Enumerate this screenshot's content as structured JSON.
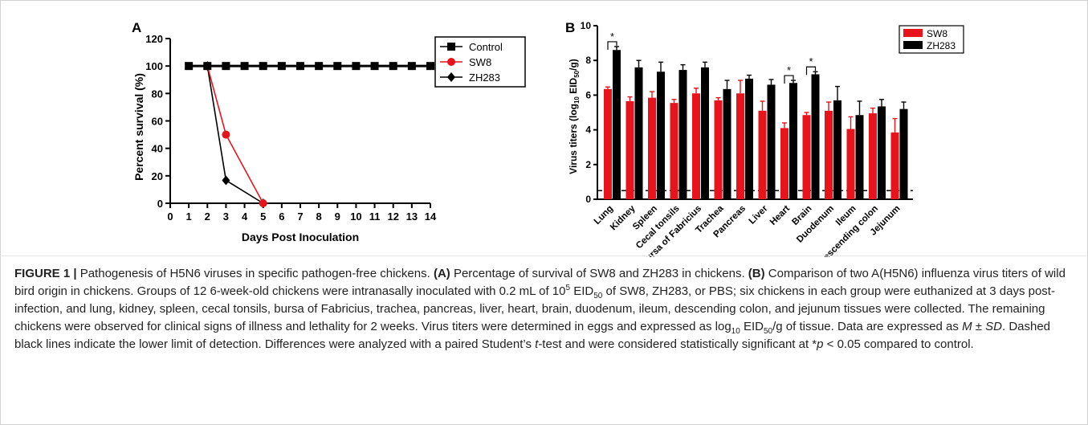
{
  "figure": {
    "panel_a": {
      "label": "A",
      "ylabel": "Percent survival (%)",
      "xlabel": "Days Post Inoculation",
      "legend": [
        "Control",
        "SW8",
        "ZH283"
      ]
    },
    "panel_b": {
      "label": "B",
      "ylabel_main": "Virus titers (log",
      "ylabel_sub": "10",
      "ylabel_mid": " EID",
      "ylabel_sub2": "50",
      "ylabel_end": "/g)",
      "legend": [
        "SW8",
        "ZH283"
      ],
      "sig_marker": "*"
    }
  },
  "chart_data": [
    {
      "type": "line",
      "title": "",
      "xlabel": "Days Post Inoculation",
      "ylabel": "Percent survival (%)",
      "xlim": [
        0,
        14
      ],
      "ylim": [
        0,
        120
      ],
      "xticks": [
        0,
        1,
        2,
        3,
        4,
        5,
        6,
        7,
        8,
        9,
        10,
        11,
        12,
        13,
        14
      ],
      "yticks": [
        0,
        20,
        40,
        60,
        80,
        100,
        120
      ],
      "legend_position": "top-right",
      "series": [
        {
          "name": "Control",
          "color": "#000000",
          "marker": "square",
          "x": [
            1,
            2,
            3,
            4,
            5,
            6,
            7,
            8,
            9,
            10,
            11,
            12,
            13,
            14
          ],
          "y": [
            100,
            100,
            100,
            100,
            100,
            100,
            100,
            100,
            100,
            100,
            100,
            100,
            100,
            100
          ]
        },
        {
          "name": "SW8",
          "color": "#e8141b",
          "marker": "circle",
          "x": [
            2,
            3,
            5
          ],
          "y": [
            100,
            50,
            0
          ]
        },
        {
          "name": "ZH283",
          "color": "#000000",
          "marker": "diamond",
          "x": [
            2,
            3,
            5
          ],
          "y": [
            100,
            16.7,
            0
          ]
        }
      ]
    },
    {
      "type": "bar",
      "title": "",
      "xlabel": "",
      "ylabel": "Virus titers (log10 EID50/g)",
      "ylim": [
        0,
        10
      ],
      "yticks": [
        0,
        2,
        4,
        6,
        8,
        10
      ],
      "detection_limit": 0.5,
      "legend_position": "top-right",
      "categories": [
        "Lung",
        "Kidney",
        "Spleen",
        "Cecal tonsils",
        "Bursa of Fabricius",
        "Trachea",
        "Pancreas",
        "Liver",
        "Heart",
        "Brain",
        "Duodenum",
        "Ileum",
        "Descending colon",
        "Jejunum"
      ],
      "series": [
        {
          "name": "SW8",
          "color": "#e8141b",
          "values": [
            6.35,
            5.65,
            5.85,
            5.55,
            6.1,
            5.7,
            6.1,
            5.1,
            4.1,
            4.85,
            5.1,
            4.05,
            4.95,
            3.85
          ],
          "errors": [
            0.12,
            0.25,
            0.35,
            0.2,
            0.3,
            0.15,
            0.75,
            0.55,
            0.3,
            0.15,
            0.5,
            0.7,
            0.3,
            0.8
          ]
        },
        {
          "name": "ZH283",
          "color": "#000000",
          "values": [
            8.6,
            7.6,
            7.35,
            7.45,
            7.6,
            6.35,
            6.95,
            6.6,
            6.7,
            7.2,
            5.7,
            4.85,
            5.35,
            5.2
          ],
          "errors": [
            0.2,
            0.4,
            0.55,
            0.3,
            0.3,
            0.5,
            0.2,
            0.3,
            0.15,
            0.15,
            0.8,
            0.8,
            0.4,
            0.4
          ]
        }
      ],
      "significance": [
        {
          "category": "Lung",
          "label": "*"
        },
        {
          "category": "Heart",
          "label": "*"
        },
        {
          "category": "Brain",
          "label": "*"
        }
      ]
    }
  ],
  "caption": {
    "fig_label": "FIGURE 1 |",
    "t1": " Pathogenesis of H5N6 viruses in specific pathogen-free chickens. ",
    "a_label": "(A)",
    "t2": " Percentage of survival of SW8 and ZH283 in chickens. ",
    "b_label": "(B)",
    "t3": " Comparison of two A(H5N6) influenza virus titers of wild bird origin in chickens. Groups of 12 6-week-old chickens were intranasally inoculated with 0.2 mL of 10",
    "sup5": "5",
    "t4": " EID",
    "sub50a": "50",
    "t5": " of SW8, ZH283, or PBS; six chickens in each group were euthanized at 3 days post-infection, and lung, kidney, spleen, cecal tonsils, bursa of Fabricius, trachea, pancreas, liver, heart, brain, duodenum, ileum, descending colon, and jejunum tissues were collected. The remaining chickens were observed for clinical signs of illness and lethality for 2 weeks. Virus titers were determined in eggs and expressed as log",
    "sub10": "10",
    "t6": " EID",
    "sub50b": "50",
    "t7": "/g of tissue. Data are expressed as ",
    "m_sd": "M ± SD",
    "t8": ". Dashed black lines indicate the lower limit of detection. Differences were analyzed with a paired Student’s ",
    "t_ital": "t",
    "t9": "-test and were considered statistically significant at *",
    "p_ital": "p",
    "t10": " < 0.05 compared to control."
  }
}
